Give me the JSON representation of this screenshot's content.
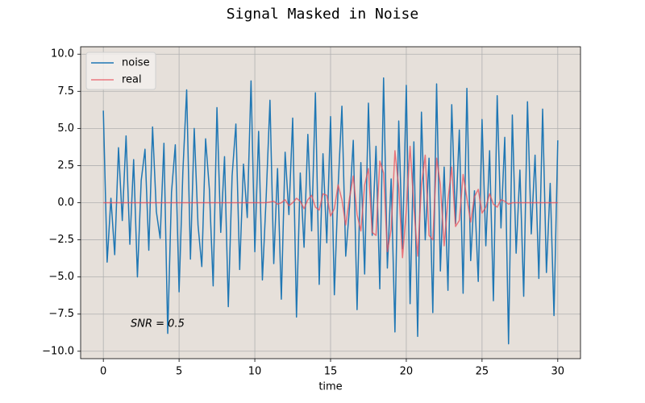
{
  "chart_data": {
    "type": "line",
    "title": "Signal Masked in Noise",
    "xlabel": "time",
    "annotation": "SNR = 0.5",
    "x": [
      0,
      0.25,
      0.5,
      0.75,
      1,
      1.25,
      1.5,
      1.75,
      2,
      2.25,
      2.5,
      2.75,
      3,
      3.25,
      3.5,
      3.75,
      4,
      4.25,
      4.5,
      4.75,
      5,
      5.25,
      5.5,
      5.75,
      6,
      6.25,
      6.5,
      6.75,
      7,
      7.25,
      7.5,
      7.75,
      8,
      8.25,
      8.5,
      8.75,
      9,
      9.25,
      9.5,
      9.75,
      10,
      10.25,
      10.5,
      10.75,
      11,
      11.25,
      11.5,
      11.75,
      12,
      12.25,
      12.5,
      12.75,
      13,
      13.25,
      13.5,
      13.75,
      14,
      14.25,
      14.5,
      14.75,
      15,
      15.25,
      15.5,
      15.75,
      16,
      16.25,
      16.5,
      16.75,
      17,
      17.25,
      17.5,
      17.75,
      18,
      18.25,
      18.5,
      18.75,
      19,
      19.25,
      19.5,
      19.75,
      20,
      20.25,
      20.5,
      20.75,
      21,
      21.25,
      21.5,
      21.75,
      22,
      22.25,
      22.5,
      22.75,
      23,
      23.25,
      23.5,
      23.75,
      24,
      24.25,
      24.5,
      24.75,
      25,
      25.25,
      25.5,
      25.75,
      26,
      26.25,
      26.5,
      26.75,
      27,
      27.25,
      27.5,
      27.75,
      28,
      28.25,
      28.5,
      28.75,
      29,
      29.25,
      29.5,
      29.75,
      30
    ],
    "series": [
      {
        "name": "noise",
        "color": "#1f77b4",
        "values": [
          6.2,
          -4.0,
          0.3,
          -3.5,
          3.7,
          -1.2,
          4.5,
          -2.8,
          2.9,
          -5.0,
          1.5,
          3.6,
          -3.2,
          5.1,
          -0.6,
          -2.4,
          4.0,
          -8.8,
          0.7,
          3.9,
          -6.0,
          2.1,
          7.6,
          -3.8,
          5.0,
          -1.5,
          -4.3,
          4.3,
          0.9,
          -5.6,
          6.4,
          -2.0,
          3.1,
          -7.0,
          1.8,
          5.3,
          -4.5,
          2.6,
          -1.0,
          8.2,
          -3.3,
          4.8,
          -5.2,
          0.4,
          6.9,
          -4.1,
          2.3,
          -6.5,
          3.4,
          -0.8,
          5.7,
          -7.7,
          2.0,
          -3.0,
          4.6,
          -1.9,
          7.4,
          -5.5,
          3.3,
          -2.7,
          5.8,
          -6.2,
          1.1,
          6.5,
          -3.6,
          -0.3,
          4.2,
          -7.2,
          2.7,
          -4.8,
          6.7,
          -2.2,
          3.8,
          -5.8,
          8.4,
          -4.4,
          1.6,
          -8.7,
          5.5,
          -3.1,
          7.9,
          -6.8,
          4.1,
          -9.0,
          6.1,
          -2.5,
          3.0,
          -7.4,
          8.0,
          -4.6,
          2.4,
          -5.9,
          6.6,
          -1.4,
          4.9,
          -6.1,
          7.7,
          -3.9,
          0.8,
          -5.3,
          5.6,
          -2.9,
          3.5,
          -6.6,
          7.2,
          -1.7,
          4.4,
          -9.5,
          5.9,
          -3.4,
          2.2,
          -6.3,
          6.8,
          -2.1,
          3.2,
          -5.1,
          6.3,
          -4.7,
          1.3,
          -7.6,
          4.2
        ]
      },
      {
        "name": "real",
        "color": "#e8505b",
        "values": [
          0,
          0,
          0,
          0,
          0,
          0,
          0,
          0,
          0,
          0,
          0,
          0,
          0,
          0,
          0,
          0,
          0,
          0,
          0,
          0,
          0,
          0,
          0,
          0,
          0,
          0,
          0,
          0,
          0,
          0,
          0,
          0,
          0,
          0,
          0,
          0,
          0,
          0,
          0,
          0,
          0,
          0,
          0,
          0,
          0.05,
          0.1,
          -0.1,
          0,
          0.2,
          -0.2,
          0,
          0.3,
          0.1,
          -0.4,
          0.2,
          0.5,
          -0.3,
          -0.5,
          0.6,
          0.5,
          -0.9,
          -0.4,
          1.2,
          0.2,
          -1.5,
          0.3,
          1.8,
          -0.8,
          -1.9,
          1.2,
          2.3,
          -2.0,
          -2.2,
          2.8,
          2.0,
          -3.3,
          -1.8,
          3.5,
          1.0,
          -3.7,
          -0.5,
          3.8,
          -0.3,
          -3.6,
          1.2,
          3.2,
          -2.2,
          -2.5,
          3.0,
          1.2,
          -2.9,
          0.2,
          2.4,
          -1.6,
          -1.2,
          1.9,
          0.3,
          -1.3,
          0.4,
          0.9,
          -0.7,
          -0.3,
          0.6,
          -0.1,
          -0.3,
          0.2,
          0.1,
          -0.1,
          0,
          0,
          0,
          0,
          0,
          0,
          0,
          0,
          0,
          0,
          0,
          0,
          0
        ]
      }
    ],
    "xlim": [
      -1.5,
      31.5
    ],
    "ylim": [
      -10.5,
      10.5
    ],
    "xticks": [
      0,
      5,
      10,
      15,
      20,
      25,
      30
    ],
    "yticks": [
      {
        "value": -10,
        "label": "−10.0"
      },
      {
        "value": -7.5,
        "label": "−7.5"
      },
      {
        "value": -5,
        "label": "−5.0"
      },
      {
        "value": -2.5,
        "label": "−2.5"
      },
      {
        "value": 0,
        "label": "0.0"
      },
      {
        "value": 2.5,
        "label": "2.5"
      },
      {
        "value": 5,
        "label": "5.0"
      },
      {
        "value": 7.5,
        "label": "7.5"
      },
      {
        "value": 10,
        "label": "10.0"
      }
    ],
    "grid": true,
    "legend": "upper left",
    "background": "#e6e0da"
  }
}
